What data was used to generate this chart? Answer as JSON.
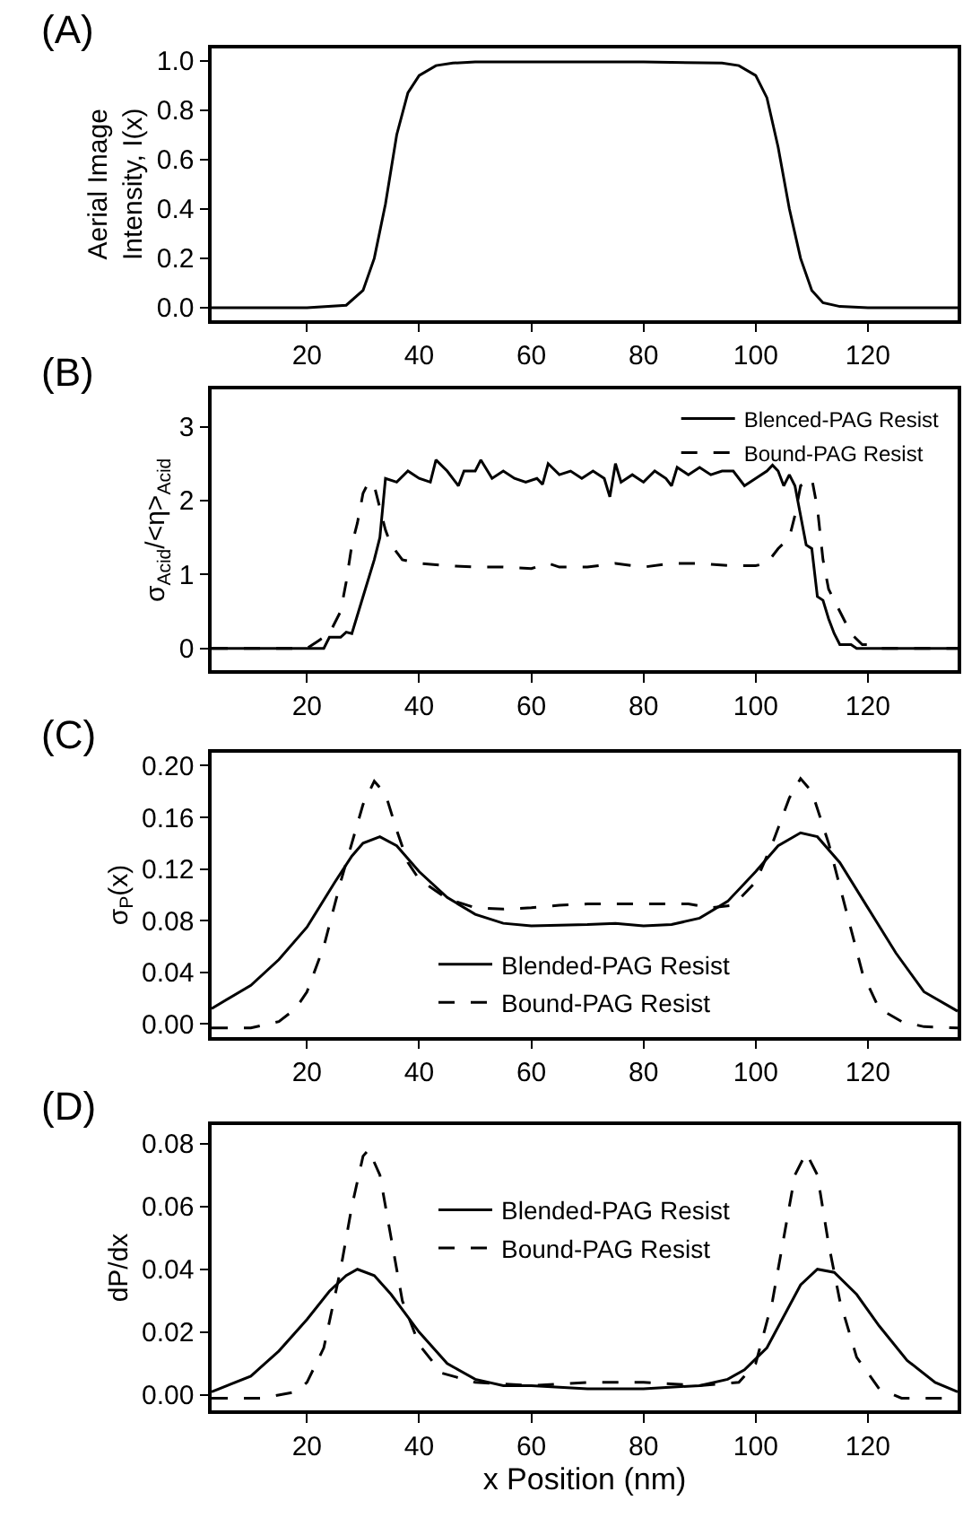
{
  "chart_data": [
    {
      "type": "line",
      "title": "(A)",
      "ylabel": "Aerial Image\nIntensity, I(x)",
      "xlim": [
        3,
        136
      ],
      "xticks": [
        20,
        40,
        60,
        80,
        100,
        120
      ],
      "ylim": [
        -0.05,
        1.05
      ],
      "yticks": [
        {
          "value": 0,
          "label": "0.0"
        },
        0.2,
        0.4,
        0.6,
        0.8,
        {
          "value": 1,
          "label": "1.0"
        }
      ],
      "legend": false,
      "marker": "none",
      "series": [
        {
          "color": "#000000",
          "line_style": "solid",
          "x": [
            3,
            20,
            27,
            30,
            32,
            34,
            36,
            38,
            40,
            43,
            46,
            50,
            60,
            80,
            94,
            97,
            100,
            102,
            104,
            106,
            108,
            110,
            112,
            115,
            120,
            136
          ],
          "values": [
            0,
            0,
            0.01,
            0.07,
            0.2,
            0.42,
            0.7,
            0.87,
            0.94,
            0.98,
            0.99,
            0.995,
            0.995,
            0.995,
            0.99,
            0.98,
            0.94,
            0.85,
            0.65,
            0.4,
            0.2,
            0.07,
            0.02,
            0.005,
            0,
            0
          ]
        }
      ]
    },
    {
      "type": "line",
      "title": "(B)",
      "ylabel": "σ$_{Acid}$/<η>$_{Acid}$",
      "xlim": [
        3,
        136
      ],
      "xticks": [
        20,
        40,
        60,
        80,
        100,
        120
      ],
      "ylim": [
        -0.3,
        3.5
      ],
      "yticks": [
        0,
        1,
        2,
        3
      ],
      "legend": "top right",
      "marker": "none",
      "series": [
        {
          "name": "Blenced-PAG Resist",
          "color": "#000000",
          "line_style": "solid",
          "x": [
            3,
            20,
            23,
            24,
            26,
            27,
            28,
            30,
            32,
            33,
            34,
            36,
            38,
            40,
            42,
            43,
            45,
            47,
            48,
            50,
            51,
            53,
            55,
            57,
            59,
            61,
            62,
            63,
            65,
            67,
            69,
            71,
            73,
            74,
            75,
            76,
            78,
            80,
            82,
            84,
            85,
            86,
            88,
            90,
            92,
            94,
            96,
            98,
            100,
            102,
            103,
            104,
            105,
            106,
            107,
            108,
            109,
            110,
            111,
            112,
            113,
            114,
            115,
            117,
            118,
            136
          ],
          "values": [
            0,
            0,
            0,
            0.15,
            0.15,
            0.22,
            0.2,
            0.7,
            1.2,
            1.5,
            2.3,
            2.25,
            2.4,
            2.3,
            2.25,
            2.55,
            2.4,
            2.2,
            2.4,
            2.4,
            2.55,
            2.3,
            2.4,
            2.3,
            2.25,
            2.3,
            2.22,
            2.5,
            2.35,
            2.4,
            2.3,
            2.4,
            2.3,
            2.05,
            2.5,
            2.25,
            2.35,
            2.25,
            2.4,
            2.3,
            2.2,
            2.45,
            2.35,
            2.45,
            2.35,
            2.4,
            2.4,
            2.2,
            2.3,
            2.4,
            2.48,
            2.4,
            2.2,
            2.35,
            2.2,
            1.8,
            1.4,
            1.35,
            0.7,
            0.65,
            0.4,
            0.2,
            0.05,
            0.05,
            0,
            0
          ]
        },
        {
          "name": "Bound-PAG Resist",
          "color": "#000000",
          "line_style": "dashed",
          "x": [
            3,
            20,
            22,
            24,
            26,
            27,
            28,
            29,
            30,
            31,
            32,
            33,
            34,
            35,
            37,
            40,
            45,
            50,
            55,
            60,
            63,
            65,
            70,
            75,
            80,
            85,
            90,
            95,
            100,
            102,
            104,
            106,
            107,
            108,
            109,
            110,
            111,
            112,
            113,
            115,
            117,
            119,
            121,
            122,
            136
          ],
          "values": [
            0,
            0,
            0.1,
            0.2,
            0.5,
            0.9,
            1.4,
            1.7,
            2.1,
            2.25,
            2.2,
            1.9,
            1.6,
            1.4,
            1.2,
            1.15,
            1.12,
            1.1,
            1.1,
            1.08,
            1.15,
            1.1,
            1.1,
            1.15,
            1.1,
            1.15,
            1.15,
            1.12,
            1.12,
            1.15,
            1.35,
            1.5,
            1.8,
            2.2,
            2.25,
            2.3,
            1.9,
            1.2,
            0.8,
            0.5,
            0.2,
            0.05,
            0.05,
            0,
            0
          ]
        }
      ]
    },
    {
      "type": "line",
      "title": "(C)",
      "ylabel": "σ$_{P}$(x)",
      "xlim": [
        3,
        136
      ],
      "xticks": [
        20,
        40,
        60,
        80,
        100,
        120
      ],
      "ylim": [
        -0.01,
        0.21
      ],
      "yticks": [
        {
          "value": 0,
          "label": "0.00"
        },
        0.04,
        0.08,
        0.12,
        0.16,
        {
          "value": 0.2,
          "label": "0.20"
        }
      ],
      "legend": "bottom",
      "marker": "none",
      "series": [
        {
          "name": "Blended-PAG Resist",
          "color": "#000000",
          "line_style": "solid",
          "x": [
            3,
            10,
            15,
            20,
            25,
            28,
            30,
            33,
            36,
            40,
            45,
            50,
            55,
            60,
            70,
            75,
            80,
            85,
            90,
            95,
            100,
            104,
            108,
            111,
            115,
            120,
            125,
            130,
            136
          ],
          "values": [
            0.012,
            0.03,
            0.05,
            0.075,
            0.11,
            0.13,
            0.14,
            0.145,
            0.138,
            0.118,
            0.098,
            0.085,
            0.078,
            0.076,
            0.077,
            0.078,
            0.076,
            0.077,
            0.082,
            0.095,
            0.118,
            0.138,
            0.148,
            0.145,
            0.125,
            0.09,
            0.055,
            0.025,
            0.01
          ]
        },
        {
          "name": "Bound-PAG Resist",
          "color": "#000000",
          "line_style": "dashed",
          "x": [
            3,
            10,
            15,
            18,
            20,
            23,
            26,
            28,
            30,
            32,
            34,
            36,
            38,
            40,
            45,
            50,
            55,
            60,
            65,
            70,
            80,
            88,
            92,
            96,
            100,
            103,
            106,
            108,
            110,
            113,
            116,
            119,
            122,
            126,
            130,
            136
          ],
          "values": [
            -0.003,
            -0.003,
            0.002,
            0.012,
            0.025,
            0.06,
            0.11,
            0.14,
            0.17,
            0.188,
            0.178,
            0.15,
            0.125,
            0.112,
            0.097,
            0.09,
            0.089,
            0.09,
            0.092,
            0.093,
            0.093,
            0.093,
            0.09,
            0.092,
            0.11,
            0.14,
            0.175,
            0.19,
            0.18,
            0.14,
            0.09,
            0.04,
            0.012,
            0.002,
            -0.002,
            -0.003
          ]
        }
      ]
    },
    {
      "type": "line",
      "title": "(D)",
      "xlabel": "x Position (nm)",
      "ylabel": "dP/dx",
      "xlim": [
        3,
        136
      ],
      "xticks": [
        20,
        40,
        60,
        80,
        100,
        120
      ],
      "ylim": [
        -0.005,
        0.086
      ],
      "yticks": [
        {
          "value": 0,
          "label": "0.00"
        },
        0.02,
        0.04,
        0.06,
        0.08
      ],
      "legend": "top",
      "marker": "none",
      "series": [
        {
          "name": "Blended-PAG Resist",
          "color": "#000000",
          "line_style": "solid",
          "x": [
            3,
            10,
            15,
            20,
            24,
            27,
            29,
            32,
            35,
            40,
            45,
            50,
            55,
            60,
            70,
            80,
            90,
            95,
            98,
            102,
            105,
            108,
            111,
            114,
            118,
            122,
            127,
            132,
            136
          ],
          "values": [
            0.001,
            0.006,
            0.014,
            0.024,
            0.033,
            0.038,
            0.04,
            0.038,
            0.032,
            0.02,
            0.01,
            0.005,
            0.003,
            0.003,
            0.002,
            0.002,
            0.003,
            0.005,
            0.008,
            0.015,
            0.025,
            0.035,
            0.04,
            0.039,
            0.032,
            0.022,
            0.011,
            0.004,
            0.001
          ]
        },
        {
          "name": "Bound-PAG Resist",
          "color": "#000000",
          "line_style": "dashed",
          "x": [
            3,
            12,
            18,
            20,
            23,
            26,
            28,
            30,
            31,
            33,
            35,
            37,
            40,
            44,
            50,
            60,
            70,
            80,
            90,
            97,
            100,
            103,
            105,
            107,
            109,
            111,
            113,
            115,
            118,
            122,
            126,
            136
          ],
          "values": [
            -0.001,
            -0.001,
            0.001,
            0.004,
            0.015,
            0.04,
            0.06,
            0.076,
            0.078,
            0.07,
            0.05,
            0.03,
            0.016,
            0.007,
            0.004,
            0.003,
            0.004,
            0.004,
            0.003,
            0.004,
            0.01,
            0.03,
            0.05,
            0.07,
            0.077,
            0.07,
            0.048,
            0.03,
            0.012,
            0.002,
            -0.001,
            -0.001
          ]
        }
      ]
    }
  ]
}
